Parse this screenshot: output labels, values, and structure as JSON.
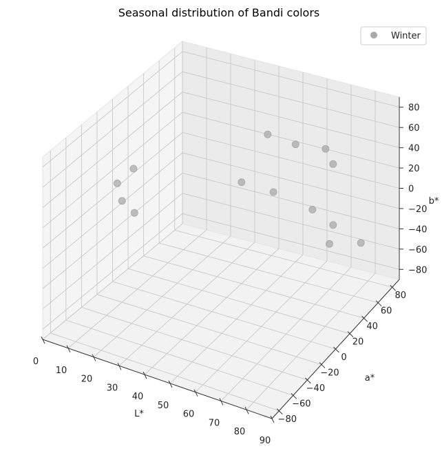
{
  "chart_data": {
    "type": "scatter",
    "title": "Seasonal distribution of Bandi colors",
    "xlabel": "L*",
    "ylabel": "a*",
    "zlabel": "b*",
    "xlim": [
      0,
      90
    ],
    "ylim": [
      -90,
      90
    ],
    "zlim": [
      -90,
      90
    ],
    "x_ticks": [
      "0",
      "10",
      "20",
      "30",
      "40",
      "50",
      "60",
      "70",
      "80",
      "90"
    ],
    "y_ticks": [
      "−80",
      "−60",
      "−40",
      "−20",
      "0",
      "20",
      "40",
      "60",
      "80"
    ],
    "z_ticks": [
      "−80",
      "−60",
      "−40",
      "−20",
      "0",
      "20",
      "40",
      "60",
      "80"
    ],
    "legend_position": "top-right",
    "series": [
      {
        "name": "Winter",
        "color": "#a9a9a9",
        "points": [
          {
            "x": 40,
            "y": 75,
            "z": 33
          },
          {
            "x": 50,
            "y": 80,
            "z": 26
          },
          {
            "x": 10,
            "y": -5,
            "z": 32
          },
          {
            "x": 60,
            "y": 88,
            "z": 22
          },
          {
            "x": 70,
            "y": 65,
            "z": 30
          },
          {
            "x": 40,
            "y": 40,
            "z": 10
          },
          {
            "x": 50,
            "y": 50,
            "z": 0
          },
          {
            "x": 5,
            "y": -10,
            "z": 17
          },
          {
            "x": 10,
            "y": -20,
            "z": 10
          },
          {
            "x": 15,
            "y": -20,
            "z": 2
          },
          {
            "x": 60,
            "y": 70,
            "z": -25
          },
          {
            "x": 70,
            "y": 65,
            "z": -30
          },
          {
            "x": 70,
            "y": 60,
            "z": -45
          },
          {
            "x": 80,
            "y": 70,
            "z": -45
          }
        ]
      }
    ]
  }
}
